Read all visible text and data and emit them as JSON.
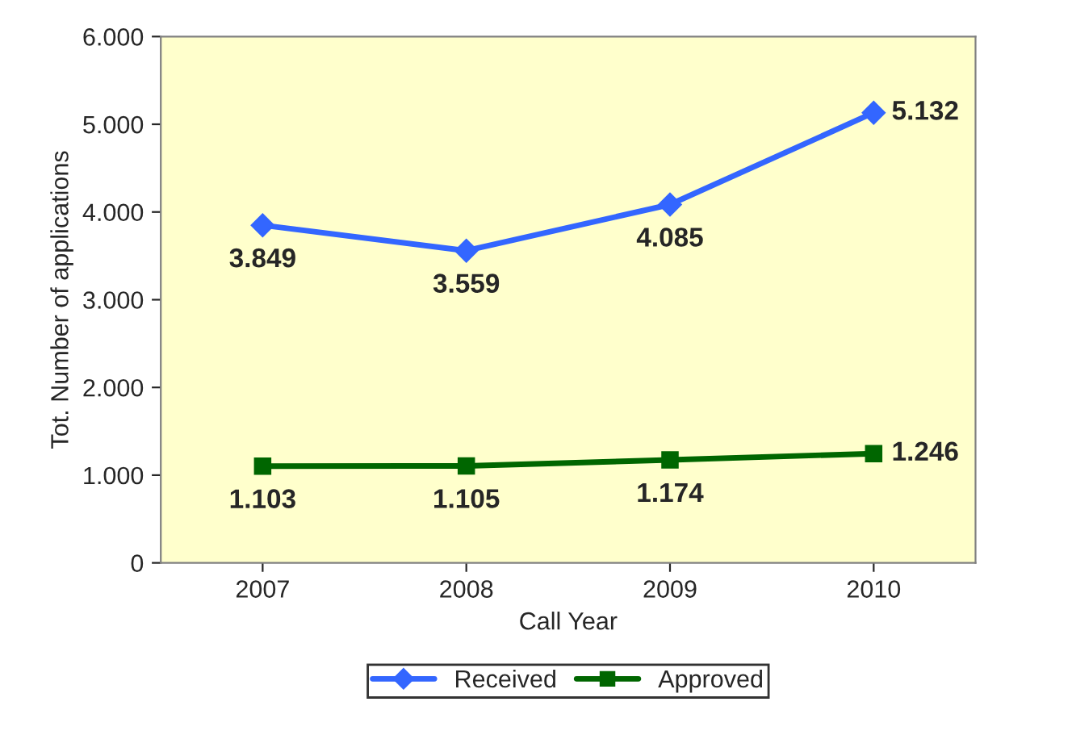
{
  "chart_data": {
    "type": "line",
    "xlabel": "Call Year",
    "ylabel": "Tot. Number of applications",
    "categories": [
      "2007",
      "2008",
      "2009",
      "2010"
    ],
    "series": [
      {
        "name": "Received",
        "color": "#3366ff",
        "marker": "diamond",
        "values": [
          3849,
          3559,
          4085,
          5132
        ],
        "value_labels": [
          "3.849",
          "3.559",
          "4.085",
          "5.132"
        ]
      },
      {
        "name": "Approved",
        "color": "#006600",
        "marker": "square",
        "values": [
          1103,
          1105,
          1174,
          1246
        ],
        "value_labels": [
          "1.103",
          "1.105",
          "1.174",
          "1.246"
        ]
      }
    ],
    "ylim": [
      0,
      6000
    ],
    "yticks": [
      {
        "value": 0,
        "label": "0"
      },
      {
        "value": 1000,
        "label": "1.000"
      },
      {
        "value": 2000,
        "label": "2.000"
      },
      {
        "value": 3000,
        "label": "3.000"
      },
      {
        "value": 4000,
        "label": "4.000"
      },
      {
        "value": 5000,
        "label": "5.000"
      },
      {
        "value": 6000,
        "label": "6.000"
      }
    ],
    "grid": false,
    "legend": "bottom"
  }
}
